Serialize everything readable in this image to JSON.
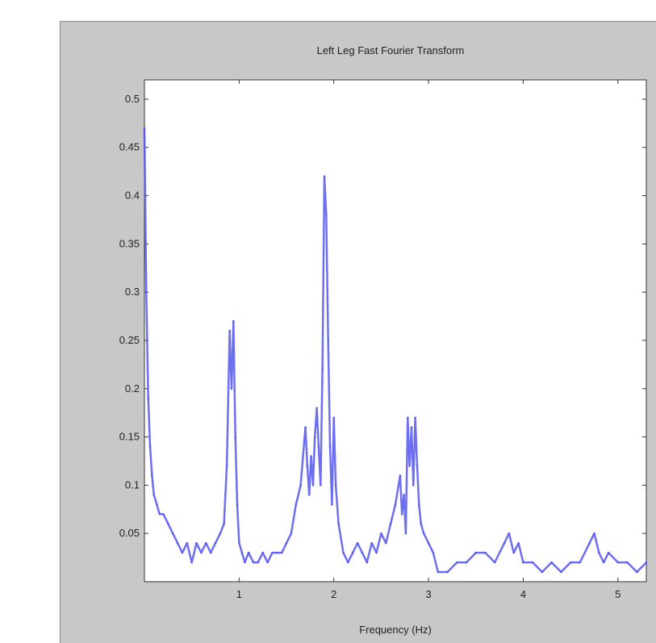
{
  "chart_data": {
    "type": "line",
    "title": "Left Leg Fast Fourier Transform",
    "xlabel": "Frequency (Hz)",
    "ylabel": "",
    "xlim": [
      0,
      5.3
    ],
    "ylim": [
      0,
      0.52
    ],
    "xticks": [
      "1",
      "2",
      "3",
      "4",
      "5"
    ],
    "yticks": [
      "0.05",
      "0.1",
      "0.15",
      "0.2",
      "0.25",
      "0.3",
      "0.35",
      "0.4",
      "0.45",
      "0.5"
    ],
    "grid": false,
    "line_color": "#5555ee",
    "series": [
      {
        "x": [
          0.0,
          0.02,
          0.04,
          0.06,
          0.08,
          0.1,
          0.13,
          0.16,
          0.2,
          0.25,
          0.3,
          0.35,
          0.4,
          0.45,
          0.5,
          0.55,
          0.6,
          0.65,
          0.7,
          0.75,
          0.8,
          0.84,
          0.87,
          0.9,
          0.92,
          0.94,
          0.96,
          0.98,
          1.0,
          1.03,
          1.06,
          1.1,
          1.15,
          1.2,
          1.25,
          1.3,
          1.35,
          1.4,
          1.45,
          1.5,
          1.55,
          1.6,
          1.65,
          1.7,
          1.72,
          1.74,
          1.76,
          1.78,
          1.8,
          1.82,
          1.84,
          1.86,
          1.88,
          1.9,
          1.92,
          1.94,
          1.96,
          1.98,
          2.0,
          2.02,
          2.05,
          2.1,
          2.15,
          2.2,
          2.25,
          2.3,
          2.35,
          2.4,
          2.45,
          2.5,
          2.55,
          2.6,
          2.65,
          2.7,
          2.72,
          2.74,
          2.76,
          2.78,
          2.8,
          2.82,
          2.84,
          2.86,
          2.88,
          2.9,
          2.92,
          2.95,
          3.0,
          3.05,
          3.1,
          3.2,
          3.3,
          3.4,
          3.5,
          3.6,
          3.7,
          3.8,
          3.85,
          3.9,
          3.95,
          4.0,
          4.1,
          4.2,
          4.3,
          4.4,
          4.5,
          4.6,
          4.7,
          4.75,
          4.8,
          4.85,
          4.9,
          5.0,
          5.1,
          5.2,
          5.3
        ],
        "values": [
          0.47,
          0.3,
          0.19,
          0.14,
          0.11,
          0.09,
          0.08,
          0.07,
          0.07,
          0.06,
          0.05,
          0.04,
          0.03,
          0.04,
          0.02,
          0.04,
          0.03,
          0.04,
          0.03,
          0.04,
          0.05,
          0.06,
          0.12,
          0.26,
          0.2,
          0.27,
          0.15,
          0.08,
          0.04,
          0.03,
          0.02,
          0.03,
          0.02,
          0.02,
          0.03,
          0.02,
          0.03,
          0.03,
          0.03,
          0.04,
          0.05,
          0.08,
          0.1,
          0.16,
          0.12,
          0.09,
          0.13,
          0.1,
          0.15,
          0.18,
          0.14,
          0.1,
          0.22,
          0.42,
          0.38,
          0.25,
          0.14,
          0.08,
          0.17,
          0.1,
          0.06,
          0.03,
          0.02,
          0.03,
          0.04,
          0.03,
          0.02,
          0.04,
          0.03,
          0.05,
          0.04,
          0.06,
          0.08,
          0.11,
          0.07,
          0.09,
          0.05,
          0.17,
          0.12,
          0.16,
          0.1,
          0.17,
          0.12,
          0.08,
          0.06,
          0.05,
          0.04,
          0.03,
          0.01,
          0.01,
          0.02,
          0.02,
          0.03,
          0.03,
          0.02,
          0.04,
          0.05,
          0.03,
          0.04,
          0.02,
          0.02,
          0.01,
          0.02,
          0.01,
          0.02,
          0.02,
          0.04,
          0.05,
          0.03,
          0.02,
          0.03,
          0.02,
          0.02,
          0.01,
          0.02
        ]
      }
    ]
  }
}
